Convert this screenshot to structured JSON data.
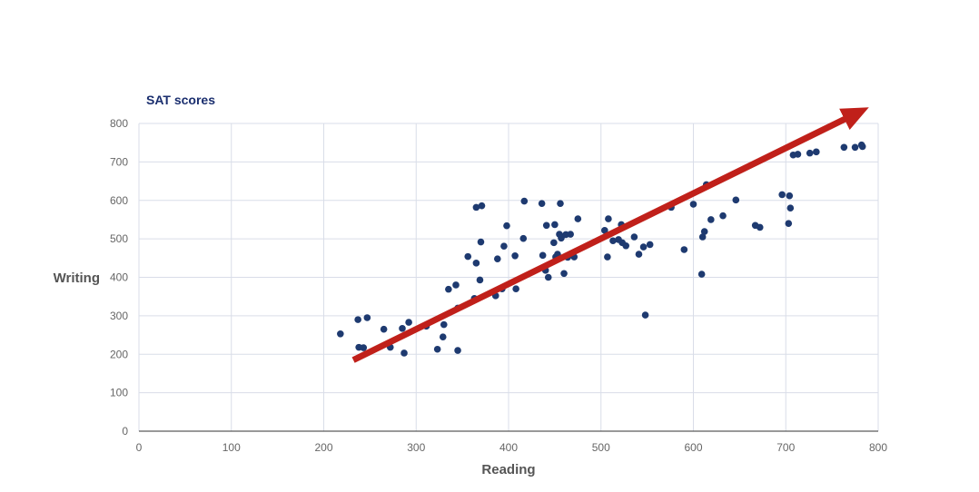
{
  "chart_data": {
    "type": "scatter",
    "title": "SAT scores",
    "xlabel": "Reading",
    "ylabel": "Writing",
    "xlim": [
      0,
      800
    ],
    "ylim": [
      0,
      800
    ],
    "x_ticks": [
      "0",
      "100",
      "200",
      "300",
      "400",
      "500",
      "600",
      "700",
      "800"
    ],
    "y_ticks": [
      "0",
      "100",
      "200",
      "300",
      "400",
      "500",
      "600",
      "700",
      "800"
    ],
    "grid": true,
    "legend": "none",
    "colors": {
      "points": "#1e3a70",
      "title": "#1a2e6e",
      "trend_arrow": "#c0201a",
      "grid": "#d9dde8"
    },
    "points": [
      [
        218,
        253
      ],
      [
        237,
        290
      ],
      [
        238,
        218
      ],
      [
        243,
        217
      ],
      [
        247,
        295
      ],
      [
        265,
        265
      ],
      [
        272,
        218
      ],
      [
        285,
        267
      ],
      [
        287,
        203
      ],
      [
        292,
        283
      ],
      [
        311,
        273
      ],
      [
        323,
        213
      ],
      [
        329,
        245
      ],
      [
        330,
        277
      ],
      [
        335,
        369
      ],
      [
        343,
        380
      ],
      [
        345,
        320
      ],
      [
        345,
        210
      ],
      [
        356,
        454
      ],
      [
        363,
        345
      ],
      [
        365,
        582
      ],
      [
        365,
        437
      ],
      [
        369,
        393
      ],
      [
        370,
        492
      ],
      [
        371,
        586
      ],
      [
        386,
        352
      ],
      [
        388,
        448
      ],
      [
        393,
        370
      ],
      [
        395,
        481
      ],
      [
        398,
        534
      ],
      [
        407,
        456
      ],
      [
        408,
        370
      ],
      [
        416,
        501
      ],
      [
        417,
        598
      ],
      [
        436,
        592
      ],
      [
        437,
        457
      ],
      [
        440,
        418
      ],
      [
        441,
        535
      ],
      [
        443,
        400
      ],
      [
        449,
        490
      ],
      [
        450,
        537
      ],
      [
        451,
        453
      ],
      [
        453,
        460
      ],
      [
        455,
        512
      ],
      [
        456,
        592
      ],
      [
        457,
        502
      ],
      [
        460,
        410
      ],
      [
        462,
        511
      ],
      [
        464,
        452
      ],
      [
        467,
        512
      ],
      [
        471,
        453
      ],
      [
        475,
        552
      ],
      [
        504,
        522
      ],
      [
        507,
        453
      ],
      [
        508,
        552
      ],
      [
        513,
        495
      ],
      [
        519,
        498
      ],
      [
        522,
        537
      ],
      [
        523,
        490
      ],
      [
        527,
        482
      ],
      [
        536,
        505
      ],
      [
        541,
        460
      ],
      [
        546,
        479
      ],
      [
        548,
        302
      ],
      [
        553,
        485
      ],
      [
        576,
        582
      ],
      [
        590,
        472
      ],
      [
        600,
        590
      ],
      [
        609,
        408
      ],
      [
        610,
        505
      ],
      [
        612,
        519
      ],
      [
        614,
        641
      ],
      [
        619,
        550
      ],
      [
        632,
        560
      ],
      [
        646,
        601
      ],
      [
        667,
        535
      ],
      [
        672,
        530
      ],
      [
        696,
        615
      ],
      [
        703,
        540
      ],
      [
        704,
        612
      ],
      [
        705,
        580
      ],
      [
        708,
        718
      ],
      [
        713,
        720
      ],
      [
        726,
        723
      ],
      [
        733,
        726
      ],
      [
        763,
        738
      ],
      [
        775,
        738
      ],
      [
        782,
        744
      ],
      [
        783,
        740
      ]
    ],
    "trend_arrow": {
      "from": [
        232,
        185
      ],
      "to": [
        767,
        815
      ]
    }
  }
}
